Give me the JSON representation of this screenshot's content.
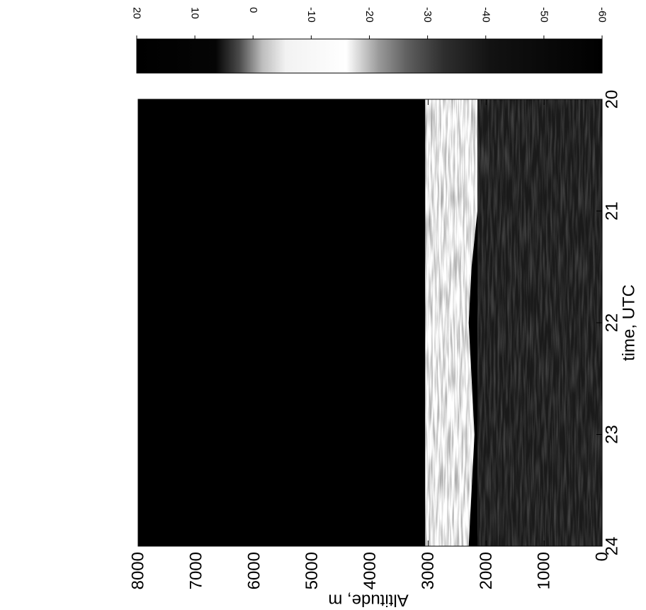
{
  "chart_data": {
    "type": "heatmap",
    "title": "",
    "xlabel": "time, UTC",
    "ylabel": "Altitude, m",
    "x_range": [
      20,
      24
    ],
    "y_range": [
      0,
      8000
    ],
    "x_ticks": [
      "20",
      "21",
      "22",
      "23",
      "24"
    ],
    "y_ticks": [
      "0",
      "1000",
      "2000",
      "3000",
      "4000",
      "5000",
      "6000",
      "7000",
      "8000"
    ],
    "colorbar": {
      "range": [
        20,
        -60
      ],
      "ticks": [
        "20",
        "10",
        "0",
        "-10",
        "-20",
        "-30",
        "-40",
        "-50",
        "-60"
      ]
    },
    "bands": [
      {
        "feature": "dark background",
        "alt_min": 3050,
        "alt_max": 8000,
        "level": -60
      },
      {
        "feature": "bright layer",
        "alt_min": 2150,
        "alt_max": 3050,
        "level": -10
      },
      {
        "feature": "scattered faint signal",
        "alt_min": 0,
        "alt_max": 2150,
        "level": -45
      }
    ],
    "bright_layer_top": {
      "x": [
        20.0,
        21.0,
        22.0,
        23.0,
        24.0
      ],
      "y": [
        3050,
        3050,
        3050,
        3050,
        3050
      ]
    },
    "bright_layer_base": {
      "x": [
        20.0,
        20.5,
        21.0,
        21.5,
        22.0,
        22.5,
        23.0,
        23.5,
        24.0
      ],
      "y": [
        2150,
        2100,
        2150,
        2250,
        2300,
        2250,
        2200,
        2250,
        2300
      ]
    },
    "grid": false,
    "orientation": "rotated 90° counter-clockwise"
  }
}
